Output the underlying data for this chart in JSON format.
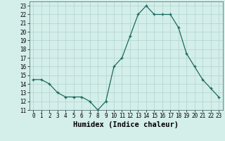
{
  "x": [
    0,
    1,
    2,
    3,
    4,
    5,
    6,
    7,
    8,
    9,
    10,
    11,
    12,
    13,
    14,
    15,
    16,
    17,
    18,
    19,
    20,
    21,
    22,
    23
  ],
  "y": [
    14.5,
    14.5,
    14.0,
    13.0,
    12.5,
    12.5,
    12.5,
    12.0,
    11.0,
    12.0,
    16.0,
    17.0,
    19.5,
    22.0,
    23.0,
    22.0,
    22.0,
    22.0,
    20.5,
    17.5,
    16.0,
    14.5,
    13.5,
    12.5
  ],
  "xlabel": "Humidex (Indice chaleur)",
  "ylim": [
    11,
    23.5
  ],
  "xlim": [
    -0.5,
    23.5
  ],
  "yticks": [
    11,
    12,
    13,
    14,
    15,
    16,
    17,
    18,
    19,
    20,
    21,
    22,
    23
  ],
  "xticks": [
    0,
    1,
    2,
    3,
    4,
    5,
    6,
    7,
    8,
    9,
    10,
    11,
    12,
    13,
    14,
    15,
    16,
    17,
    18,
    19,
    20,
    21,
    22,
    23
  ],
  "line_color": "#1a6b5e",
  "marker_color": "#1a6b5e",
  "bg_color": "#d4eeea",
  "grid_color": "#b0d4ce",
  "tick_label_fontsize": 5.5,
  "xlabel_fontsize": 7.5
}
